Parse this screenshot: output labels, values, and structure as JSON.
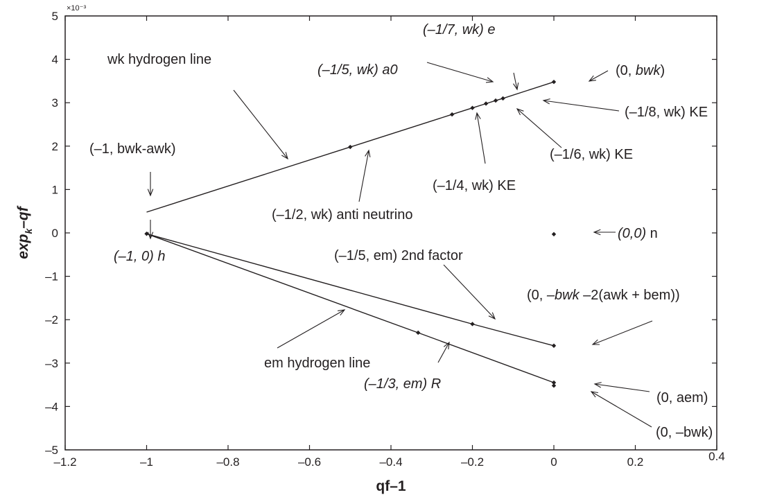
{
  "chart_data": {
    "type": "line",
    "xlabel": "qf–1",
    "ylabel": {
      "main": "exp",
      "sub": "k",
      "rest": "–qf"
    },
    "y_scale_label": "×10⁻³",
    "xlim": [
      -1.2,
      0.4
    ],
    "ylim": [
      -5,
      5
    ],
    "x_ticks": [
      -1.2,
      -1,
      -0.8,
      -0.6,
      -0.4,
      -0.2,
      0,
      0.2,
      0.4
    ],
    "x_tick_labels": [
      "–1.2",
      "–1",
      "–0.8",
      "–0.6",
      "–0.4",
      "–0.2",
      "0",
      "0.2",
      "0.4"
    ],
    "y_ticks": [
      -5,
      -4,
      -3,
      -2,
      -1,
      0,
      1,
      2,
      3,
      4,
      5
    ],
    "y_tick_labels": [
      "–5",
      "–4",
      "–3",
      "–2",
      "–1",
      "0",
      "1",
      "2",
      "3",
      "4",
      "5"
    ],
    "grid": false,
    "series": [
      {
        "values_x": [
          -1,
          -0.5,
          -0.25,
          -0.2,
          -0.1667,
          -0.1429,
          -0.125,
          0
        ],
        "values_y": [
          0.48,
          1.98,
          2.73,
          2.88,
          2.98,
          3.05,
          3.1,
          3.48
        ]
      },
      {
        "values_x": [
          -1,
          -0.3333,
          0
        ],
        "values_y": [
          -0.02,
          -2.3,
          -3.45
        ]
      },
      {
        "values_x": [
          -1,
          -0.2,
          0
        ],
        "values_y": [
          -0.02,
          -2.1,
          -2.6
        ]
      }
    ],
    "points": [
      {
        "x": -1,
        "y": -0.02
      },
      {
        "x": -0.5,
        "y": 1.98
      },
      {
        "x": -0.25,
        "y": 2.73
      },
      {
        "x": -0.2,
        "y": 2.88
      },
      {
        "x": -0.1667,
        "y": 2.98
      },
      {
        "x": -0.1429,
        "y": 3.05
      },
      {
        "x": -0.125,
        "y": 3.1
      },
      {
        "x": 0,
        "y": 3.48
      },
      {
        "x": 0,
        "y": -0.03
      },
      {
        "x": -0.2,
        "y": -2.1
      },
      {
        "x": 0,
        "y": -2.6
      },
      {
        "x": -0.3333,
        "y": -2.3
      },
      {
        "x": 0,
        "y": -3.45
      },
      {
        "x": 0,
        "y": -3.52
      }
    ],
    "annotations": [
      {
        "id": "wk-hydrogen-line",
        "runs": [
          {
            "t": "wk hydrogen line"
          }
        ]
      },
      {
        "id": "wk-point-minus1",
        "runs": [
          {
            "t": "(–1, bwk-awk)"
          }
        ]
      },
      {
        "id": "wk-anti-neutrino",
        "runs": [
          {
            "t": "(–1/2, wk) anti neutrino"
          }
        ]
      },
      {
        "id": "wk-a0",
        "runs": [
          {
            "t": "(–1/5, wk) a0",
            "i": true
          }
        ]
      },
      {
        "id": "wk-e",
        "runs": [
          {
            "t": "(–1/7, wk) e",
            "i": true
          }
        ]
      },
      {
        "id": "wk-zero",
        "runs": [
          {
            "t": "(0, "
          },
          {
            "t": "bwk",
            "i": true
          },
          {
            "t": ")"
          }
        ]
      },
      {
        "id": "wk-eighth",
        "runs": [
          {
            "t": "(–1/8, wk) KE"
          }
        ]
      },
      {
        "id": "wk-sixth",
        "runs": [
          {
            "t": "(–1/6, wk) KE"
          }
        ]
      },
      {
        "id": "wk-quarter",
        "runs": [
          {
            "t": "(–1/4, wk) KE"
          }
        ]
      },
      {
        "id": "origin-n",
        "runs": [
          {
            "t": "(0,0)",
            "i": true
          },
          {
            "t": " n"
          }
        ]
      },
      {
        "id": "h-point",
        "runs": [
          {
            "t": "(–1, 0) h",
            "i": true
          }
        ]
      },
      {
        "id": "em-2nd-factor",
        "runs": [
          {
            "t": "(–1/5, em) 2nd factor"
          }
        ]
      },
      {
        "id": "em-zero-long",
        "runs": [
          {
            "t": "(0, "
          },
          {
            "t": "–bwk",
            "i": true
          },
          {
            "t": " –2(awk + bem))"
          }
        ]
      },
      {
        "id": "em-hydrogen-line",
        "runs": [
          {
            "t": "em hydrogen line"
          }
        ]
      },
      {
        "id": "em-r",
        "runs": [
          {
            "t": "(–1/3, em) R",
            "i": true
          }
        ]
      },
      {
        "id": "em-aem",
        "runs": [
          {
            "t": "(0, aem)"
          }
        ]
      },
      {
        "id": "em-minus-bwk",
        "runs": [
          {
            "t": "(0, –bwk)"
          }
        ]
      }
    ]
  }
}
